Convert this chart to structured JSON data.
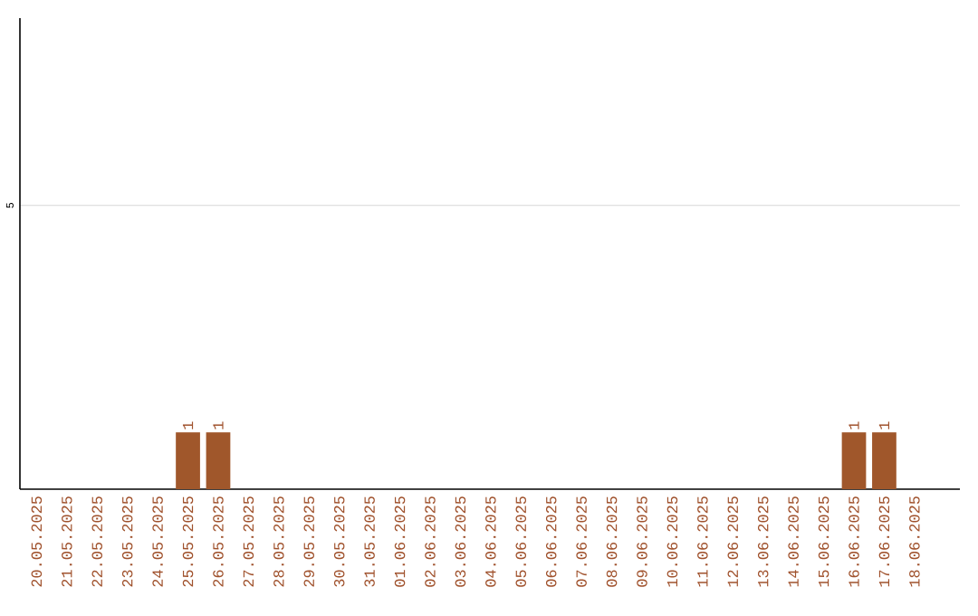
{
  "chart_data": {
    "type": "bar",
    "categories": [
      "20.05.2025",
      "21.05.2025",
      "22.05.2025",
      "23.05.2025",
      "24.05.2025",
      "25.05.2025",
      "26.05.2025",
      "27.05.2025",
      "28.05.2025",
      "29.05.2025",
      "30.05.2025",
      "31.05.2025",
      "01.06.2025",
      "02.06.2025",
      "03.06.2025",
      "04.06.2025",
      "05.06.2025",
      "06.06.2025",
      "07.06.2025",
      "08.06.2025",
      "09.06.2025",
      "10.06.2025",
      "11.06.2025",
      "12.06.2025",
      "13.06.2025",
      "14.06.2025",
      "15.06.2025",
      "16.06.2025",
      "17.06.2025",
      "18.06.2025"
    ],
    "values": [
      0,
      0,
      0,
      0,
      0,
      1,
      1,
      0,
      0,
      0,
      0,
      0,
      0,
      0,
      0,
      0,
      0,
      0,
      0,
      0,
      0,
      0,
      0,
      0,
      0,
      0,
      0,
      1,
      1,
      0
    ],
    "value_labels": [
      null,
      null,
      null,
      null,
      null,
      "1",
      "1",
      null,
      null,
      null,
      null,
      null,
      null,
      null,
      null,
      null,
      null,
      null,
      null,
      null,
      null,
      null,
      null,
      null,
      null,
      null,
      null,
      "1",
      "1",
      null
    ],
    "color": "#a0572b",
    "ylim": [
      0,
      8.3
    ],
    "yticks": [
      5
    ],
    "grid": "y"
  }
}
